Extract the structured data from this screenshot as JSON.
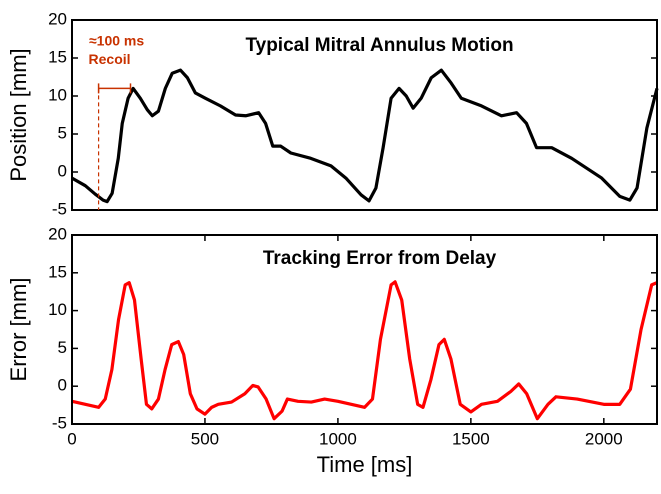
{
  "chart_data": [
    {
      "type": "line",
      "title": "Typical Mitral Annulus Motion",
      "ylabel": "Position [mm]",
      "xlim": [
        0,
        2200
      ],
      "ylim": [
        -5,
        20
      ],
      "yticks": [
        -5,
        0,
        5,
        10,
        15,
        20
      ],
      "annotations": [
        {
          "text": "≈100 ms",
          "x": 100
        },
        {
          "text": "Recoil",
          "x": [
            100,
            220
          ],
          "y": 11
        }
      ],
      "x": [
        0,
        50,
        87,
        117,
        132,
        151,
        174,
        189,
        211,
        230,
        257,
        283,
        302,
        325,
        351,
        377,
        408,
        434,
        464,
        502,
        558,
        615,
        653,
        702,
        728,
        755,
        785,
        823,
        898,
        974,
        1030,
        1087,
        1117,
        1143,
        1170,
        1200,
        1230,
        1257,
        1283,
        1313,
        1351,
        1389,
        1426,
        1464,
        1540,
        1615,
        1672,
        1709,
        1747,
        1804,
        1879,
        1992,
        2060,
        2098,
        2125,
        2162,
        2200
      ],
      "series": [
        {
          "color": "#000000",
          "values": [
            -0.8,
            -1.8,
            -2.9,
            -3.7,
            -3.9,
            -2.8,
            1.8,
            6.4,
            9.7,
            11,
            9.7,
            8.2,
            7.4,
            8,
            11,
            13,
            13.4,
            12.4,
            10.4,
            9.7,
            8.7,
            7.5,
            7.4,
            7.8,
            6.4,
            3.4,
            3.4,
            2.5,
            1.8,
            0.8,
            -0.8,
            -3,
            -3.8,
            -2.1,
            3.2,
            9.7,
            11,
            10,
            8.4,
            9.7,
            12.4,
            13.4,
            11.7,
            9.7,
            8.7,
            7.4,
            7.8,
            6.4,
            3.2,
            3.2,
            1.8,
            -0.8,
            -3.2,
            -3.7,
            -2.1,
            5.8,
            11
          ]
        }
      ]
    },
    {
      "type": "line",
      "title": "Tracking Error from Delay",
      "ylabel": "Error [mm]",
      "xlabel": "Time [ms]",
      "xlim": [
        0,
        2200
      ],
      "xticks": [
        0,
        500,
        1000,
        1500,
        2000
      ],
      "ylim": [
        -5,
        20
      ],
      "yticks": [
        -5,
        0,
        5,
        10,
        15,
        20
      ],
      "x": [
        0,
        50,
        100,
        125,
        150,
        175,
        200,
        215,
        235,
        260,
        280,
        300,
        325,
        350,
        375,
        400,
        420,
        445,
        470,
        500,
        525,
        550,
        600,
        650,
        680,
        700,
        730,
        760,
        790,
        810,
        850,
        900,
        950,
        1000,
        1050,
        1100,
        1130,
        1160,
        1200,
        1215,
        1240,
        1270,
        1300,
        1320,
        1350,
        1380,
        1400,
        1425,
        1460,
        1500,
        1540,
        1600,
        1650,
        1680,
        1710,
        1750,
        1790,
        1820,
        1900,
        2000,
        2060,
        2100,
        2140,
        2180,
        2200
      ],
      "series": [
        {
          "color": "#ff0000",
          "values": [
            -2,
            -2.4,
            -2.8,
            -1.7,
            2.2,
            8.8,
            13.4,
            13.7,
            11.4,
            3.6,
            -2.4,
            -3,
            -1.7,
            2.2,
            5.5,
            5.9,
            4.2,
            -1,
            -3,
            -3.7,
            -2.8,
            -2.4,
            -2.1,
            -1,
            0.1,
            -0.1,
            -1.7,
            -4.3,
            -3.3,
            -1.7,
            -2,
            -2.1,
            -1.7,
            -2,
            -2.4,
            -2.8,
            -1.7,
            6.2,
            13.4,
            13.8,
            11.4,
            3.6,
            -2.4,
            -2.8,
            0.9,
            5.5,
            6.2,
            3.6,
            -2.4,
            -3.4,
            -2.4,
            -2,
            -0.7,
            0.3,
            -1,
            -4.3,
            -2.4,
            -1.4,
            -1.7,
            -2.4,
            -2.4,
            -0.4,
            7.5,
            13.4,
            13.7
          ]
        }
      ]
    }
  ]
}
